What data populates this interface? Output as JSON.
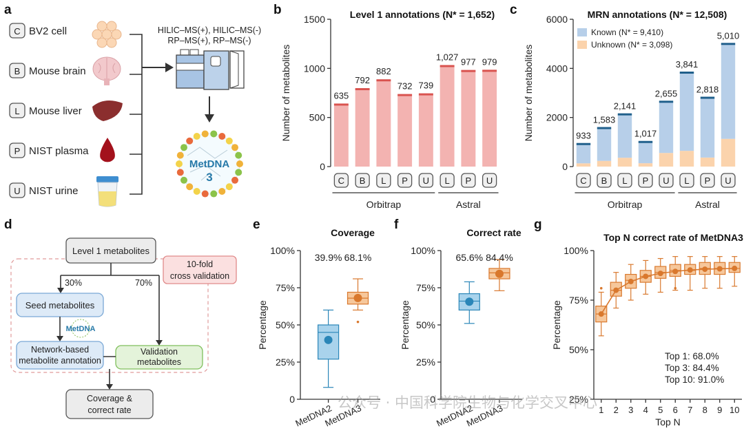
{
  "panel_labels": {
    "a": "a",
    "b": "b",
    "c": "c",
    "d": "d",
    "e": "e",
    "f": "f",
    "g": "g"
  },
  "panel_a": {
    "samples": [
      {
        "badge": "C",
        "label": "BV2 cell",
        "icon": "cells-icon"
      },
      {
        "badge": "B",
        "label": "Mouse brain",
        "icon": "brain-icon"
      },
      {
        "badge": "L",
        "label": "Mouse liver",
        "icon": "liver-icon"
      },
      {
        "badge": "P",
        "label": "NIST plasma",
        "icon": "blood-drop-icon"
      },
      {
        "badge": "U",
        "label": "NIST urine",
        "icon": "urine-cup-icon"
      }
    ],
    "methods_line1": "HILIC–MS(+), HILIC–MS(-)",
    "methods_line2": "RP–MS(+), RP–MS(-)",
    "logo_text_1": "MetDNA",
    "logo_text_2": "3"
  },
  "panel_d": {
    "level1": "Level 1 metabolites",
    "pct_left": "30%",
    "pct_right": "70%",
    "cv_line1": "10-fold",
    "cv_line2": "cross validation",
    "seed": "Seed metabolites",
    "metdna": "MetDNA",
    "network_line1": "Network-based",
    "network_line2": "metabolite annotation",
    "validation_line1": "Validation",
    "validation_line2": "metabolites",
    "result_line1": "Coverage &",
    "result_line2": "correct rate"
  },
  "watermark": "公众号 · 中国科学院生物与化学交叉中心",
  "chart_data": [
    {
      "id": "b",
      "type": "bar",
      "title": "Level 1 annotations (N* = 1,652)",
      "ylabel": "Number of metabolites",
      "ylim": [
        0,
        1500
      ],
      "yticks": [
        "0",
        "500",
        "1000",
        "1500"
      ],
      "yticks_values": [
        0,
        500,
        1000,
        1500
      ],
      "categories": [
        "C",
        "B",
        "L",
        "P",
        "U",
        "L",
        "P",
        "U"
      ],
      "values": [
        635,
        792,
        882,
        732,
        739,
        1027,
        977,
        979
      ],
      "value_labels": [
        "635",
        "792",
        "882",
        "732",
        "739",
        "1,027",
        "977",
        "979"
      ],
      "groups": [
        {
          "label": "Orbitrap",
          "start": 0,
          "end": 4
        },
        {
          "label": "Astral",
          "start": 5,
          "end": 7
        }
      ],
      "colors": {
        "bar": "#f3b3b1",
        "top": "#d9534f"
      }
    },
    {
      "id": "c",
      "type": "bar",
      "title": "MRN annotations (N* = 12,508)",
      "ylabel": "Number of metabolites",
      "ylim": [
        0,
        6000
      ],
      "yticks": [
        "0",
        "2000",
        "4000",
        "6000"
      ],
      "yticks_values": [
        0,
        2000,
        4000,
        6000
      ],
      "categories": [
        "C",
        "B",
        "L",
        "P",
        "U",
        "L",
        "P",
        "U"
      ],
      "series": [
        {
          "name": "Known (N* = 9,410)",
          "values": [
            800,
            1350,
            1780,
            880,
            2100,
            3200,
            2450,
            3880
          ],
          "color": "#b7cfe9"
        },
        {
          "name": "Unknown (N* = 3,098)",
          "values": [
            133,
            233,
            361,
            137,
            555,
            641,
            368,
            1130
          ],
          "color": "#fbd3ac"
        }
      ],
      "totals": [
        933,
        1583,
        2141,
        1017,
        2655,
        3841,
        2818,
        5010
      ],
      "value_labels": [
        "933",
        "1,583",
        "2,141",
        "1,017",
        "2,655",
        "3,841",
        "2,818",
        "5,010"
      ],
      "groups": [
        {
          "label": "Orbitrap",
          "start": 0,
          "end": 4
        },
        {
          "label": "Astral",
          "start": 5,
          "end": 7
        }
      ],
      "legend_position": "top-left",
      "colors": {
        "top": "#1f5f8b"
      }
    },
    {
      "id": "e",
      "type": "box",
      "title": "Coverage",
      "ylabel": "Percentage",
      "ylim": [
        0,
        100
      ],
      "yticks": [
        "0",
        "25%",
        "50%",
        "75%",
        "100%"
      ],
      "yticks_values": [
        0,
        25,
        50,
        75,
        100
      ],
      "categories": [
        "MetDNA2",
        "MetDNA3"
      ],
      "value_labels": [
        "39.9%",
        "68.1%"
      ],
      "boxes": [
        {
          "min": 8,
          "q1": 27,
          "median": 45,
          "q3": 50,
          "max": 60,
          "mean": 39.9,
          "outliers": [],
          "color": "#a9d3ec",
          "edge": "#2a86b8"
        },
        {
          "min": 60,
          "q1": 64,
          "median": 68,
          "q3": 72,
          "max": 81,
          "mean": 68.1,
          "outliers": [
            52
          ],
          "color": "#f6c79b",
          "edge": "#d9782d"
        }
      ]
    },
    {
      "id": "f",
      "type": "box",
      "title": "Correct rate",
      "ylabel": "Percentage",
      "ylim": [
        0,
        100
      ],
      "yticks": [
        "0",
        "25%",
        "50%",
        "75%",
        "100%"
      ],
      "yticks_values": [
        0,
        25,
        50,
        75,
        100
      ],
      "categories": [
        "MetDNA2",
        "MetDNA3"
      ],
      "value_labels": [
        "65.6%",
        "84.4%"
      ],
      "boxes": [
        {
          "min": 51,
          "q1": 60,
          "median": 66,
          "q3": 71,
          "max": 79,
          "mean": 65.6,
          "outliers": [],
          "color": "#a9d3ec",
          "edge": "#2a86b8"
        },
        {
          "min": 73,
          "q1": 81,
          "median": 85,
          "q3": 88,
          "max": 94,
          "mean": 84.4,
          "outliers": [],
          "color": "#f6c79b",
          "edge": "#d9782d"
        }
      ]
    },
    {
      "id": "g",
      "type": "box",
      "title": "Top N correct rate of MetDNA3",
      "ylabel": "Percentage",
      "xlabel": "Top N",
      "ylim": [
        25,
        100
      ],
      "yticks": [
        "25%",
        "50%",
        "75%",
        "100%"
      ],
      "yticks_values": [
        25,
        50,
        75,
        100
      ],
      "categories": [
        "1",
        "2",
        "3",
        "4",
        "5",
        "6",
        "7",
        "8",
        "9",
        "10"
      ],
      "means": [
        68.0,
        80.0,
        84.4,
        87.0,
        88.5,
        89.5,
        90.2,
        90.6,
        90.8,
        91.0
      ],
      "boxes": [
        {
          "min": 57,
          "q1": 64,
          "median": 68,
          "q3": 72,
          "max": 79,
          "outliers": [
            81
          ]
        },
        {
          "min": 71,
          "q1": 77,
          "median": 80,
          "q3": 84,
          "max": 89,
          "outliers": []
        },
        {
          "min": 75,
          "q1": 81,
          "median": 85,
          "q3": 88,
          "max": 93,
          "outliers": []
        },
        {
          "min": 78,
          "q1": 84,
          "median": 87,
          "q3": 90,
          "max": 95,
          "outliers": []
        },
        {
          "min": 79,
          "q1": 86,
          "median": 89,
          "q3": 92,
          "max": 96,
          "outliers": []
        },
        {
          "min": 80,
          "q1": 87,
          "median": 90,
          "q3": 93,
          "max": 97,
          "outliers": [
            81
          ]
        },
        {
          "min": 80,
          "q1": 88,
          "median": 90,
          "q3": 93,
          "max": 97,
          "outliers": []
        },
        {
          "min": 81,
          "q1": 88,
          "median": 91,
          "q3": 94,
          "max": 97,
          "outliers": []
        },
        {
          "min": 81,
          "q1": 88,
          "median": 91,
          "q3": 94,
          "max": 97,
          "outliers": []
        },
        {
          "min": 82,
          "q1": 89,
          "median": 91,
          "q3": 94,
          "max": 97,
          "outliers": []
        }
      ],
      "annotations": [
        "Top 1: 68.0%",
        "Top 3: 84.4%",
        "Top 10: 91.0%"
      ],
      "colors": {
        "box": "#f6c79b",
        "edge": "#d9782d",
        "mean": "#d9782d"
      }
    }
  ]
}
